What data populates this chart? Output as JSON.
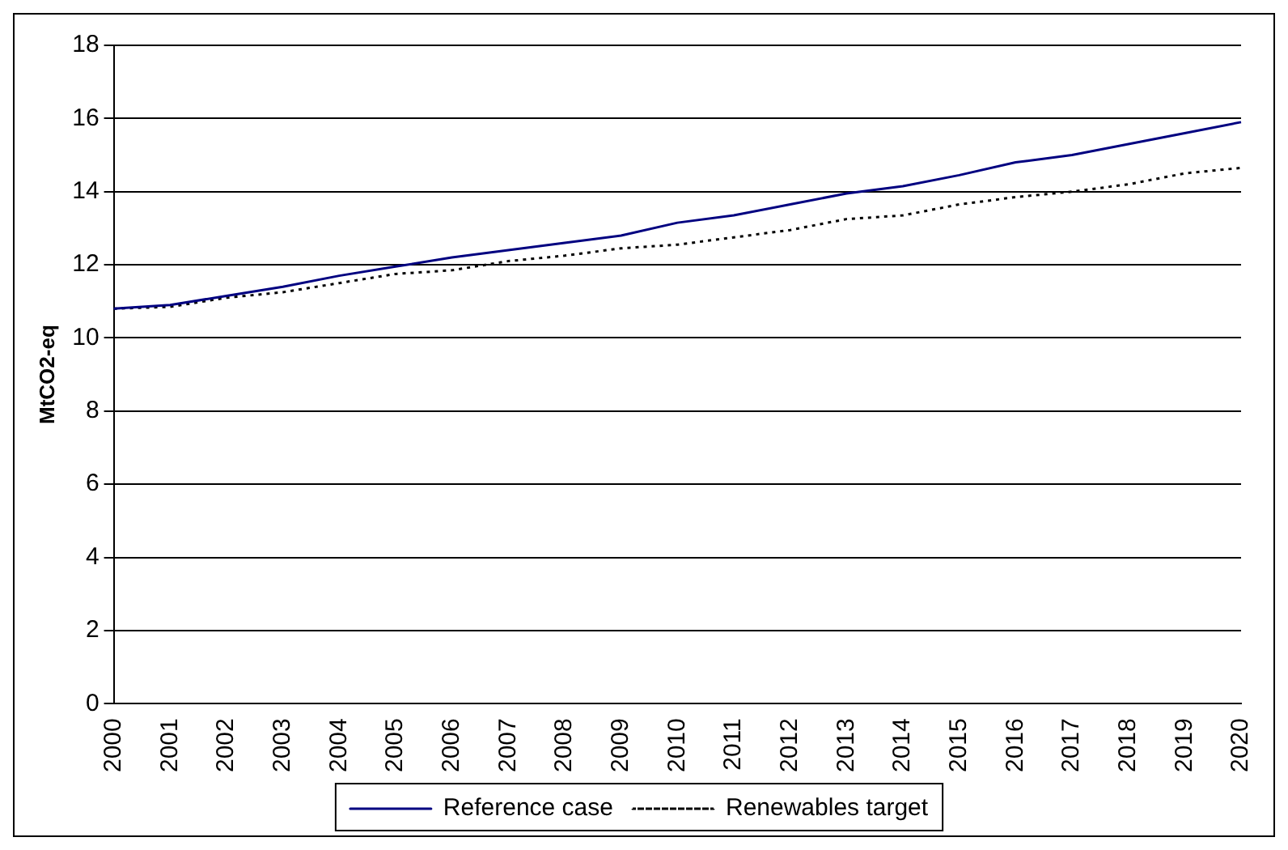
{
  "chart_data": {
    "type": "line",
    "ylabel": "MtCO2-eq",
    "categories": [
      "2000",
      "2001",
      "2002",
      "2003",
      "2004",
      "2005",
      "2006",
      "2007",
      "2008",
      "2009",
      "2010",
      "2011",
      "2012",
      "2013",
      "2014",
      "2015",
      "2016",
      "2017",
      "2018",
      "2019",
      "2020"
    ],
    "series": [
      {
        "name": "Reference case",
        "color": "#000080",
        "line_style": "solid",
        "values": [
          10.8,
          10.9,
          11.15,
          11.4,
          11.7,
          11.95,
          12.2,
          12.4,
          12.6,
          12.8,
          13.15,
          13.35,
          13.65,
          13.95,
          14.15,
          14.45,
          14.8,
          15.0,
          15.3,
          15.6,
          15.9
        ]
      },
      {
        "name": "Renewables target",
        "color": "#000000",
        "line_style": "dotted",
        "values": [
          10.8,
          10.85,
          11.1,
          11.25,
          11.5,
          11.75,
          11.85,
          12.1,
          12.25,
          12.45,
          12.55,
          12.75,
          12.95,
          13.25,
          13.35,
          13.65,
          13.85,
          14.0,
          14.2,
          14.5,
          14.65
        ]
      }
    ],
    "ylim": [
      0,
      18
    ],
    "yticks": [
      0,
      2,
      4,
      6,
      8,
      10,
      12,
      14,
      16,
      18
    ],
    "grid": "y",
    "legend": "bottom",
    "marker": "none"
  }
}
